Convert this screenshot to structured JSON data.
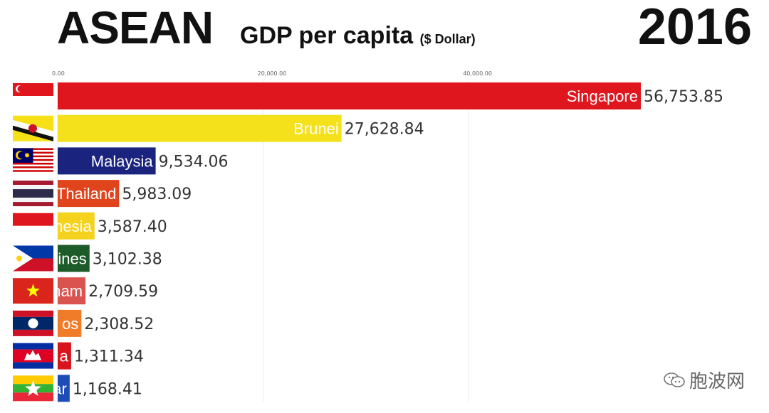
{
  "header": {
    "title": "ASEAN",
    "subtitle": "GDP per capita",
    "unit": "($ Dollar)",
    "year": "2016"
  },
  "watermark": "胞波网",
  "chart_data": {
    "type": "bar",
    "orientation": "horizontal",
    "title": "ASEAN GDP per capita ($ Dollar)",
    "xlim": [
      0,
      57000
    ],
    "x_ticks": [
      "0.00",
      "20,000.00",
      "40,000.00"
    ],
    "x_tick_values": [
      0,
      20000,
      40000
    ],
    "grid": true,
    "series": [
      {
        "category": "Singapore",
        "value": 56753.85,
        "value_label": "56,753.85",
        "bar_label": "Singapore",
        "color": "#e0161e",
        "label_color": "#ffffff",
        "flag": "singapore-flag-icon"
      },
      {
        "category": "Brunei",
        "value": 27628.84,
        "value_label": "27,628.84",
        "bar_label": "Brunei",
        "color": "#f4e11c",
        "label_color": "#ffffff",
        "flag": "brunei-flag-icon"
      },
      {
        "category": "Malaysia",
        "value": 9534.06,
        "value_label": "9,534.06",
        "bar_label": "Malaysia",
        "color": "#1a237e",
        "label_color": "#ffffff",
        "flag": "malaysia-flag-icon"
      },
      {
        "category": "Thailand",
        "value": 5983.09,
        "value_label": "5,983.09",
        "bar_label": "Thailand",
        "color": "#e0441c",
        "label_color": "#ffffff",
        "flag": "thailand-flag-icon"
      },
      {
        "category": "Indonesia",
        "value": 3587.4,
        "value_label": "3,587.40",
        "bar_label": "nesia",
        "color": "#f5d21e",
        "label_color": "#ffffff",
        "flag": "indonesia-flag-icon"
      },
      {
        "category": "Philippines",
        "value": 3102.38,
        "value_label": "3,102.38",
        "bar_label": "ines",
        "color": "#1e5b2a",
        "label_color": "#ffffff",
        "flag": "philippines-flag-icon"
      },
      {
        "category": "Vietnam",
        "value": 2709.59,
        "value_label": "2,709.59",
        "bar_label": "nam",
        "color": "#d9534f",
        "label_color": "#ffffff",
        "flag": "vietnam-flag-icon"
      },
      {
        "category": "Laos",
        "value": 2308.52,
        "value_label": "2,308.52",
        "bar_label": "os",
        "color": "#f07c2a",
        "label_color": "#ffffff",
        "flag": "laos-flag-icon"
      },
      {
        "category": "Cambodia",
        "value": 1311.34,
        "value_label": "1,311.34",
        "bar_label": "a",
        "color": "#d8141e",
        "label_color": "#ffffff",
        "flag": "cambodia-flag-icon"
      },
      {
        "category": "Myanmar",
        "value": 1168.41,
        "value_label": "1,168.41",
        "bar_label": "ar",
        "color": "#1f4bb8",
        "label_color": "#ffffff",
        "flag": "myanmar-flag-icon"
      }
    ]
  }
}
